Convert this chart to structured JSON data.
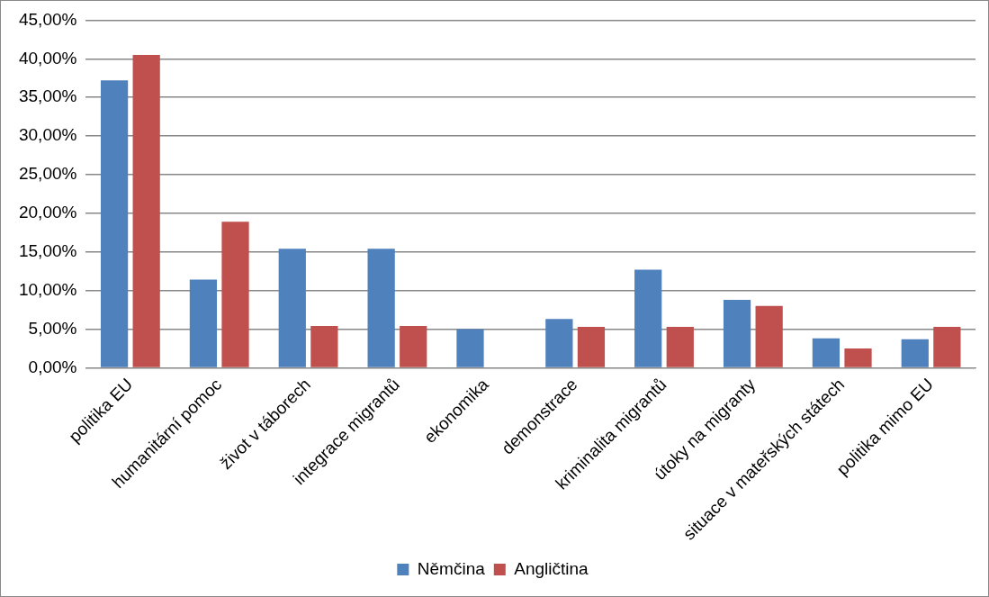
{
  "chart_data": {
    "type": "bar",
    "categories": [
      "politika EU",
      "humanitární pomoc",
      "život v táborech",
      "integrace migrantů",
      "ekonomika",
      "demonstrace",
      "kriminalita migrantů",
      "útoky na migranty",
      "situace v mateřských státech",
      "politika mimo EU"
    ],
    "series": [
      {
        "name": "Němčina",
        "color": "#4f81bd",
        "values": [
          37.2,
          11.4,
          15.4,
          15.4,
          5.0,
          6.3,
          12.7,
          8.8,
          3.8,
          3.7
        ]
      },
      {
        "name": "Angličtina",
        "color": "#c0504d",
        "values": [
          40.5,
          18.9,
          5.4,
          5.4,
          0,
          5.3,
          5.3,
          8.0,
          2.5,
          5.3
        ]
      }
    ],
    "ylim": [
      0,
      45
    ],
    "yticks": [
      {
        "value": 0,
        "label": "0,00%"
      },
      {
        "value": 5,
        "label": "5,00%"
      },
      {
        "value": 10,
        "label": "10,00%"
      },
      {
        "value": 15,
        "label": "15,00%"
      },
      {
        "value": 20,
        "label": "20,00%"
      },
      {
        "value": 25,
        "label": "25,00%"
      },
      {
        "value": 30,
        "label": "30,00%"
      },
      {
        "value": 35,
        "label": "35,00%"
      },
      {
        "value": 40,
        "label": "40,00%"
      },
      {
        "value": 45,
        "label": "45,00%"
      }
    ],
    "grid": "y",
    "legend": "bottom"
  }
}
